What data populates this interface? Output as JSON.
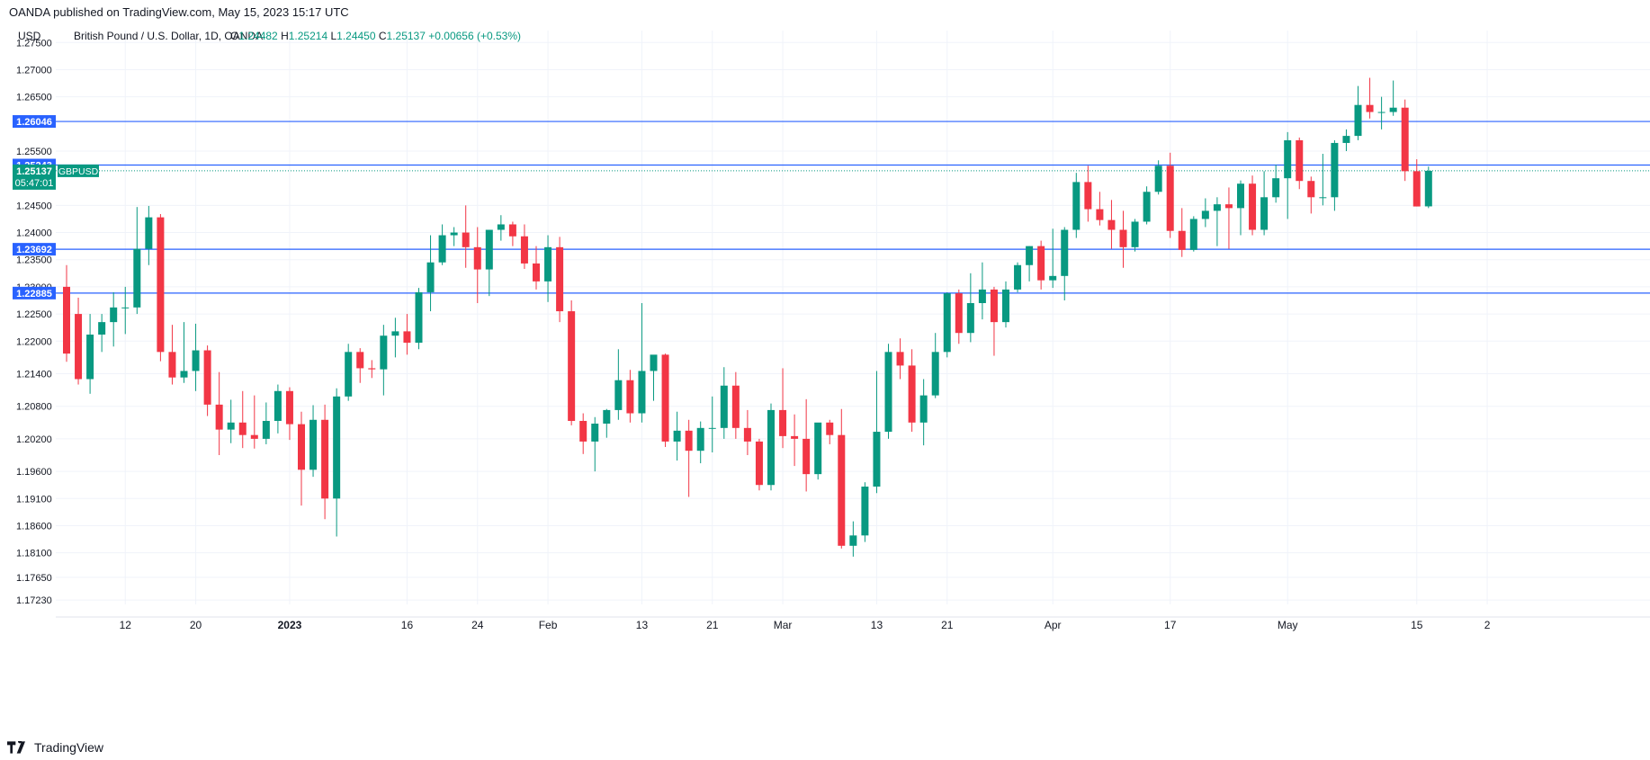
{
  "header": {
    "published": "OANDA published on TradingView.com, May 15, 2023 15:17 UTC"
  },
  "currency": "USD",
  "legend": {
    "symbol_desc": "British Pound / U.S. Dollar, 1D, OANDA",
    "o_label": "O",
    "o": "1.24482",
    "h_label": "H",
    "h": "1.25214",
    "l_label": "L",
    "l": "1.24450",
    "c_label": "C",
    "c": "1.25137",
    "change": "+0.00656 (+0.53%)"
  },
  "footer": {
    "brand": "TradingView"
  },
  "colors": {
    "up": "#089981",
    "down": "#f23645",
    "hline": "#2962ff",
    "grid": "#f0f3fa",
    "axis_text": "#131722"
  },
  "chart_data": {
    "type": "candlestick",
    "symbol": "GBPUSD",
    "ylim": [
      1.1715,
      1.2772
    ],
    "y_ticks": [
      "1.27500",
      "1.27000",
      "1.26500",
      "1.25500",
      "1.24500",
      "1.24000",
      "1.23500",
      "1.23000",
      "1.22500",
      "1.22000",
      "1.21400",
      "1.20800",
      "1.20200",
      "1.19600",
      "1.19100",
      "1.18600",
      "1.18100",
      "1.17650",
      "1.17230"
    ],
    "x_ticks": [
      {
        "label": "12",
        "bar": 5
      },
      {
        "label": "20",
        "bar": 11
      },
      {
        "label": "2023",
        "bar": 19
      },
      {
        "label": "16",
        "bar": 29
      },
      {
        "label": "24",
        "bar": 35
      },
      {
        "label": "Feb",
        "bar": 41
      },
      {
        "label": "13",
        "bar": 49
      },
      {
        "label": "21",
        "bar": 55
      },
      {
        "label": "Mar",
        "bar": 61
      },
      {
        "label": "13",
        "bar": 69
      },
      {
        "label": "21",
        "bar": 75
      },
      {
        "label": "Apr",
        "bar": 84
      },
      {
        "label": "17",
        "bar": 94
      },
      {
        "label": "May",
        "bar": 104
      },
      {
        "label": "15",
        "bar": 115
      },
      {
        "label": "2",
        "bar": 121
      }
    ],
    "horizontal_lines": [
      {
        "label": "1.26046",
        "value": 1.26046
      },
      {
        "label": "1.25243",
        "value": 1.25243
      },
      {
        "label": "1.23692",
        "value": 1.23692
      },
      {
        "label": "1.22885",
        "value": 1.22885
      }
    ],
    "last_price": {
      "label": "1.25137",
      "value": 1.25137,
      "symbol": "GBPUSD",
      "countdown": "05:47:01"
    },
    "candles": [
      {
        "o": 1.23,
        "h": 1.234,
        "l": 1.2162,
        "c": 1.2177
      },
      {
        "o": 1.225,
        "h": 1.228,
        "l": 1.212,
        "c": 1.213
      },
      {
        "o": 1.213,
        "h": 1.225,
        "l": 1.2103,
        "c": 1.2212
      },
      {
        "o": 1.2212,
        "h": 1.225,
        "l": 1.218,
        "c": 1.2235
      },
      {
        "o": 1.2235,
        "h": 1.229,
        "l": 1.219,
        "c": 1.2262
      },
      {
        "o": 1.2262,
        "h": 1.23,
        "l": 1.2213,
        "c": 1.2262
      },
      {
        "o": 1.2262,
        "h": 1.2447,
        "l": 1.225,
        "c": 1.237
      },
      {
        "o": 1.237,
        "h": 1.2449,
        "l": 1.234,
        "c": 1.2428
      },
      {
        "o": 1.2428,
        "h": 1.2434,
        "l": 1.2163,
        "c": 1.218
      },
      {
        "o": 1.218,
        "h": 1.223,
        "l": 1.212,
        "c": 1.2133
      },
      {
        "o": 1.2133,
        "h": 1.2235,
        "l": 1.2123,
        "c": 1.2145
      },
      {
        "o": 1.2145,
        "h": 1.2232,
        "l": 1.2108,
        "c": 1.2183
      },
      {
        "o": 1.2183,
        "h": 1.2192,
        "l": 1.2062,
        "c": 1.2083
      },
      {
        "o": 1.2083,
        "h": 1.2143,
        "l": 1.199,
        "c": 1.2037
      },
      {
        "o": 1.2037,
        "h": 1.2092,
        "l": 1.2012,
        "c": 1.205
      },
      {
        "o": 1.205,
        "h": 1.2108,
        "l": 1.2003,
        "c": 1.2027
      },
      {
        "o": 1.2027,
        "h": 1.21,
        "l": 1.2002,
        "c": 1.202
      },
      {
        "o": 1.202,
        "h": 1.2087,
        "l": 1.201,
        "c": 1.2053
      },
      {
        "o": 1.2053,
        "h": 1.212,
        "l": 1.203,
        "c": 1.2108
      },
      {
        "o": 1.2108,
        "h": 1.2115,
        "l": 1.2018,
        "c": 1.2047
      },
      {
        "o": 1.2047,
        "h": 1.207,
        "l": 1.1897,
        "c": 1.1963
      },
      {
        "o": 1.1963,
        "h": 1.2082,
        "l": 1.195,
        "c": 1.2055
      },
      {
        "o": 1.2055,
        "h": 1.2083,
        "l": 1.1872,
        "c": 1.191
      },
      {
        "o": 1.191,
        "h": 1.2113,
        "l": 1.184,
        "c": 1.2098
      },
      {
        "o": 1.2098,
        "h": 1.2195,
        "l": 1.209,
        "c": 1.218
      },
      {
        "o": 1.218,
        "h": 1.2187,
        "l": 1.2123,
        "c": 1.215
      },
      {
        "o": 1.215,
        "h": 1.2165,
        "l": 1.2132,
        "c": 1.2148
      },
      {
        "o": 1.2148,
        "h": 1.223,
        "l": 1.21,
        "c": 1.221
      },
      {
        "o": 1.221,
        "h": 1.2243,
        "l": 1.217,
        "c": 1.2218
      },
      {
        "o": 1.2218,
        "h": 1.225,
        "l": 1.2175,
        "c": 1.2197
      },
      {
        "o": 1.2197,
        "h": 1.2298,
        "l": 1.2185,
        "c": 1.229
      },
      {
        "o": 1.229,
        "h": 1.2395,
        "l": 1.2255,
        "c": 1.2345
      },
      {
        "o": 1.2345,
        "h": 1.2415,
        "l": 1.234,
        "c": 1.2395
      },
      {
        "o": 1.2395,
        "h": 1.241,
        "l": 1.2375,
        "c": 1.24
      },
      {
        "o": 1.24,
        "h": 1.245,
        "l": 1.2335,
        "c": 1.2373
      },
      {
        "o": 1.2373,
        "h": 1.241,
        "l": 1.227,
        "c": 1.2332
      },
      {
        "o": 1.2332,
        "h": 1.2405,
        "l": 1.2283,
        "c": 1.2405
      },
      {
        "o": 1.2405,
        "h": 1.2432,
        "l": 1.2385,
        "c": 1.2415
      },
      {
        "o": 1.2415,
        "h": 1.242,
        "l": 1.2375,
        "c": 1.2393
      },
      {
        "o": 1.2393,
        "h": 1.2415,
        "l": 1.2333,
        "c": 1.2343
      },
      {
        "o": 1.2343,
        "h": 1.2375,
        "l": 1.2295,
        "c": 1.231
      },
      {
        "o": 1.231,
        "h": 1.2395,
        "l": 1.2272,
        "c": 1.2373
      },
      {
        "o": 1.2373,
        "h": 1.2392,
        "l": 1.2235,
        "c": 1.2255
      },
      {
        "o": 1.2255,
        "h": 1.2275,
        "l": 1.2045,
        "c": 1.2053
      },
      {
        "o": 1.2053,
        "h": 1.2067,
        "l": 1.1992,
        "c": 1.2015
      },
      {
        "o": 1.2015,
        "h": 1.206,
        "l": 1.196,
        "c": 1.2048
      },
      {
        "o": 1.2048,
        "h": 1.2075,
        "l": 1.2022,
        "c": 1.2073
      },
      {
        "o": 1.2073,
        "h": 1.2185,
        "l": 1.2055,
        "c": 1.2128
      },
      {
        "o": 1.2128,
        "h": 1.2147,
        "l": 1.205,
        "c": 1.2067
      },
      {
        "o": 1.2067,
        "h": 1.227,
        "l": 1.205,
        "c": 1.2145
      },
      {
        "o": 1.2145,
        "h": 1.217,
        "l": 1.209,
        "c": 1.2175
      },
      {
        "o": 1.2175,
        "h": 1.2177,
        "l": 1.2005,
        "c": 1.2015
      },
      {
        "o": 1.2015,
        "h": 1.207,
        "l": 1.198,
        "c": 1.2035
      },
      {
        "o": 1.2035,
        "h": 1.2055,
        "l": 1.1913,
        "c": 1.1998
      },
      {
        "o": 1.1998,
        "h": 1.2052,
        "l": 1.1975,
        "c": 1.204
      },
      {
        "o": 1.204,
        "h": 1.2098,
        "l": 1.1995,
        "c": 1.204
      },
      {
        "o": 1.204,
        "h": 1.2152,
        "l": 1.202,
        "c": 1.2118
      },
      {
        "o": 1.2118,
        "h": 1.2143,
        "l": 1.202,
        "c": 1.204
      },
      {
        "o": 1.204,
        "h": 1.2073,
        "l": 1.199,
        "c": 1.2015
      },
      {
        "o": 1.2015,
        "h": 1.202,
        "l": 1.1925,
        "c": 1.1935
      },
      {
        "o": 1.1935,
        "h": 1.2085,
        "l": 1.1925,
        "c": 1.2073
      },
      {
        "o": 1.2073,
        "h": 1.215,
        "l": 1.2003,
        "c": 1.2025
      },
      {
        "o": 1.2025,
        "h": 1.2065,
        "l": 1.197,
        "c": 1.202
      },
      {
        "o": 1.202,
        "h": 1.2093,
        "l": 1.1923,
        "c": 1.1955
      },
      {
        "o": 1.1955,
        "h": 1.2048,
        "l": 1.1945,
        "c": 1.205
      },
      {
        "o": 1.205,
        "h": 1.2055,
        "l": 1.201,
        "c": 1.2027
      },
      {
        "o": 1.2027,
        "h": 1.2075,
        "l": 1.1818,
        "c": 1.1823
      },
      {
        "o": 1.1823,
        "h": 1.1868,
        "l": 1.1803,
        "c": 1.1842
      },
      {
        "o": 1.1842,
        "h": 1.194,
        "l": 1.183,
        "c": 1.1932
      },
      {
        "o": 1.1932,
        "h": 1.2145,
        "l": 1.192,
        "c": 1.2033
      },
      {
        "o": 1.2033,
        "h": 1.2195,
        "l": 1.202,
        "c": 1.218
      },
      {
        "o": 1.218,
        "h": 1.2205,
        "l": 1.213,
        "c": 1.2155
      },
      {
        "o": 1.2155,
        "h": 1.2185,
        "l": 1.2033,
        "c": 1.205
      },
      {
        "o": 1.205,
        "h": 1.213,
        "l": 1.2008,
        "c": 1.21
      },
      {
        "o": 1.21,
        "h": 1.2215,
        "l": 1.2095,
        "c": 1.218
      },
      {
        "o": 1.218,
        "h": 1.229,
        "l": 1.217,
        "c": 1.2288
      },
      {
        "o": 1.2288,
        "h": 1.2295,
        "l": 1.2195,
        "c": 1.2215
      },
      {
        "o": 1.2215,
        "h": 1.2325,
        "l": 1.2198,
        "c": 1.227
      },
      {
        "o": 1.227,
        "h": 1.2345,
        "l": 1.224,
        "c": 1.2295
      },
      {
        "o": 1.2295,
        "h": 1.23,
        "l": 1.2173,
        "c": 1.2235
      },
      {
        "o": 1.2235,
        "h": 1.231,
        "l": 1.2225,
        "c": 1.2295
      },
      {
        "o": 1.2295,
        "h": 1.2345,
        "l": 1.229,
        "c": 1.234
      },
      {
        "o": 1.234,
        "h": 1.2375,
        "l": 1.231,
        "c": 1.2375
      },
      {
        "o": 1.2375,
        "h": 1.2385,
        "l": 1.2295,
        "c": 1.2312
      },
      {
        "o": 1.2312,
        "h": 1.2407,
        "l": 1.2298,
        "c": 1.232
      },
      {
        "o": 1.232,
        "h": 1.241,
        "l": 1.2275,
        "c": 1.2405
      },
      {
        "o": 1.2405,
        "h": 1.251,
        "l": 1.239,
        "c": 1.2493
      },
      {
        "o": 1.2493,
        "h": 1.2523,
        "l": 1.242,
        "c": 1.2443
      },
      {
        "o": 1.2443,
        "h": 1.2475,
        "l": 1.2413,
        "c": 1.2423
      },
      {
        "o": 1.2423,
        "h": 1.246,
        "l": 1.237,
        "c": 1.2405
      },
      {
        "o": 1.2405,
        "h": 1.244,
        "l": 1.2335,
        "c": 1.2373
      },
      {
        "o": 1.2373,
        "h": 1.2425,
        "l": 1.2365,
        "c": 1.242
      },
      {
        "o": 1.242,
        "h": 1.2485,
        "l": 1.2415,
        "c": 1.2475
      },
      {
        "o": 1.2475,
        "h": 1.2533,
        "l": 1.247,
        "c": 1.2523
      },
      {
        "o": 1.2523,
        "h": 1.2547,
        "l": 1.239,
        "c": 1.2403
      },
      {
        "o": 1.2403,
        "h": 1.2445,
        "l": 1.2355,
        "c": 1.2368
      },
      {
        "o": 1.2368,
        "h": 1.243,
        "l": 1.2365,
        "c": 1.2425
      },
      {
        "o": 1.2425,
        "h": 1.2463,
        "l": 1.241,
        "c": 1.244
      },
      {
        "o": 1.244,
        "h": 1.2465,
        "l": 1.2375,
        "c": 1.2452
      },
      {
        "o": 1.2452,
        "h": 1.2483,
        "l": 1.237,
        "c": 1.2445
      },
      {
        "o": 1.2445,
        "h": 1.2496,
        "l": 1.2395,
        "c": 1.249
      },
      {
        "o": 1.249,
        "h": 1.2505,
        "l": 1.2395,
        "c": 1.2405
      },
      {
        "o": 1.2405,
        "h": 1.2513,
        "l": 1.2395,
        "c": 1.2465
      },
      {
        "o": 1.2465,
        "h": 1.2525,
        "l": 1.2455,
        "c": 1.25
      },
      {
        "o": 1.25,
        "h": 1.2585,
        "l": 1.2425,
        "c": 1.257
      },
      {
        "o": 1.257,
        "h": 1.2575,
        "l": 1.248,
        "c": 1.2495
      },
      {
        "o": 1.2495,
        "h": 1.2503,
        "l": 1.2435,
        "c": 1.2465
      },
      {
        "o": 1.2465,
        "h": 1.2545,
        "l": 1.245,
        "c": 1.2465
      },
      {
        "o": 1.2465,
        "h": 1.257,
        "l": 1.244,
        "c": 1.2565
      },
      {
        "o": 1.2565,
        "h": 1.259,
        "l": 1.255,
        "c": 1.2578
      },
      {
        "o": 1.2578,
        "h": 1.267,
        "l": 1.257,
        "c": 1.2635
      },
      {
        "o": 1.2635,
        "h": 1.2685,
        "l": 1.261,
        "c": 1.2622
      },
      {
        "o": 1.2622,
        "h": 1.265,
        "l": 1.259,
        "c": 1.2622
      },
      {
        "o": 1.2622,
        "h": 1.268,
        "l": 1.2615,
        "c": 1.263
      },
      {
        "o": 1.263,
        "h": 1.2645,
        "l": 1.2495,
        "c": 1.2513
      },
      {
        "o": 1.2513,
        "h": 1.2535,
        "l": 1.2448,
        "c": 1.2448
      },
      {
        "o": 1.24482,
        "h": 1.25214,
        "l": 1.2445,
        "c": 1.25137
      }
    ]
  }
}
